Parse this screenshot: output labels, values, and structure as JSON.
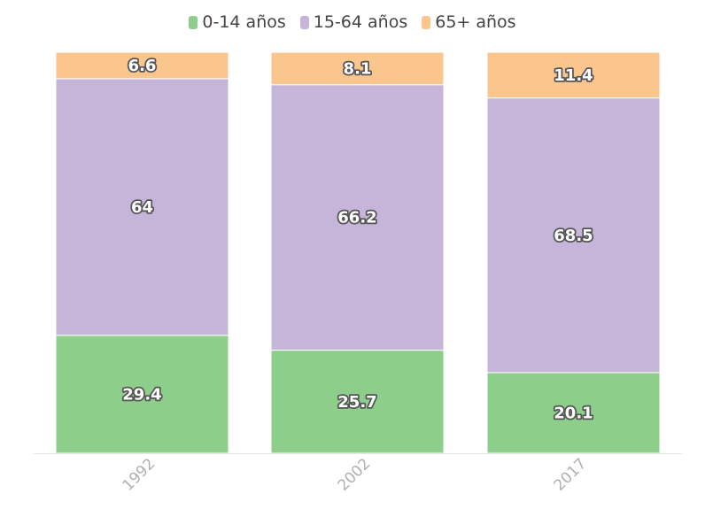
{
  "chart_data": {
    "type": "bar",
    "stacked": true,
    "categories": [
      "1992",
      "2002",
      "2017"
    ],
    "series": [
      {
        "name": "0-14 años",
        "color": "#8dce8a",
        "values": [
          29.4,
          25.7,
          20.1
        ]
      },
      {
        "name": "15-64 años",
        "color": "#c5b5d8",
        "values": [
          64,
          66.2,
          68.5
        ]
      },
      {
        "name": "65+ años",
        "color": "#fbc58e",
        "values": [
          6.6,
          8.1,
          11.4
        ]
      }
    ],
    "value_labels": [
      [
        "29.4",
        "25.7",
        "20.1"
      ],
      [
        "64",
        "66.2",
        "68.5"
      ],
      [
        "6.6",
        "8.1",
        "11.4"
      ]
    ],
    "ylim": [
      0,
      100
    ],
    "legend_position": "top-center",
    "grid": false
  }
}
